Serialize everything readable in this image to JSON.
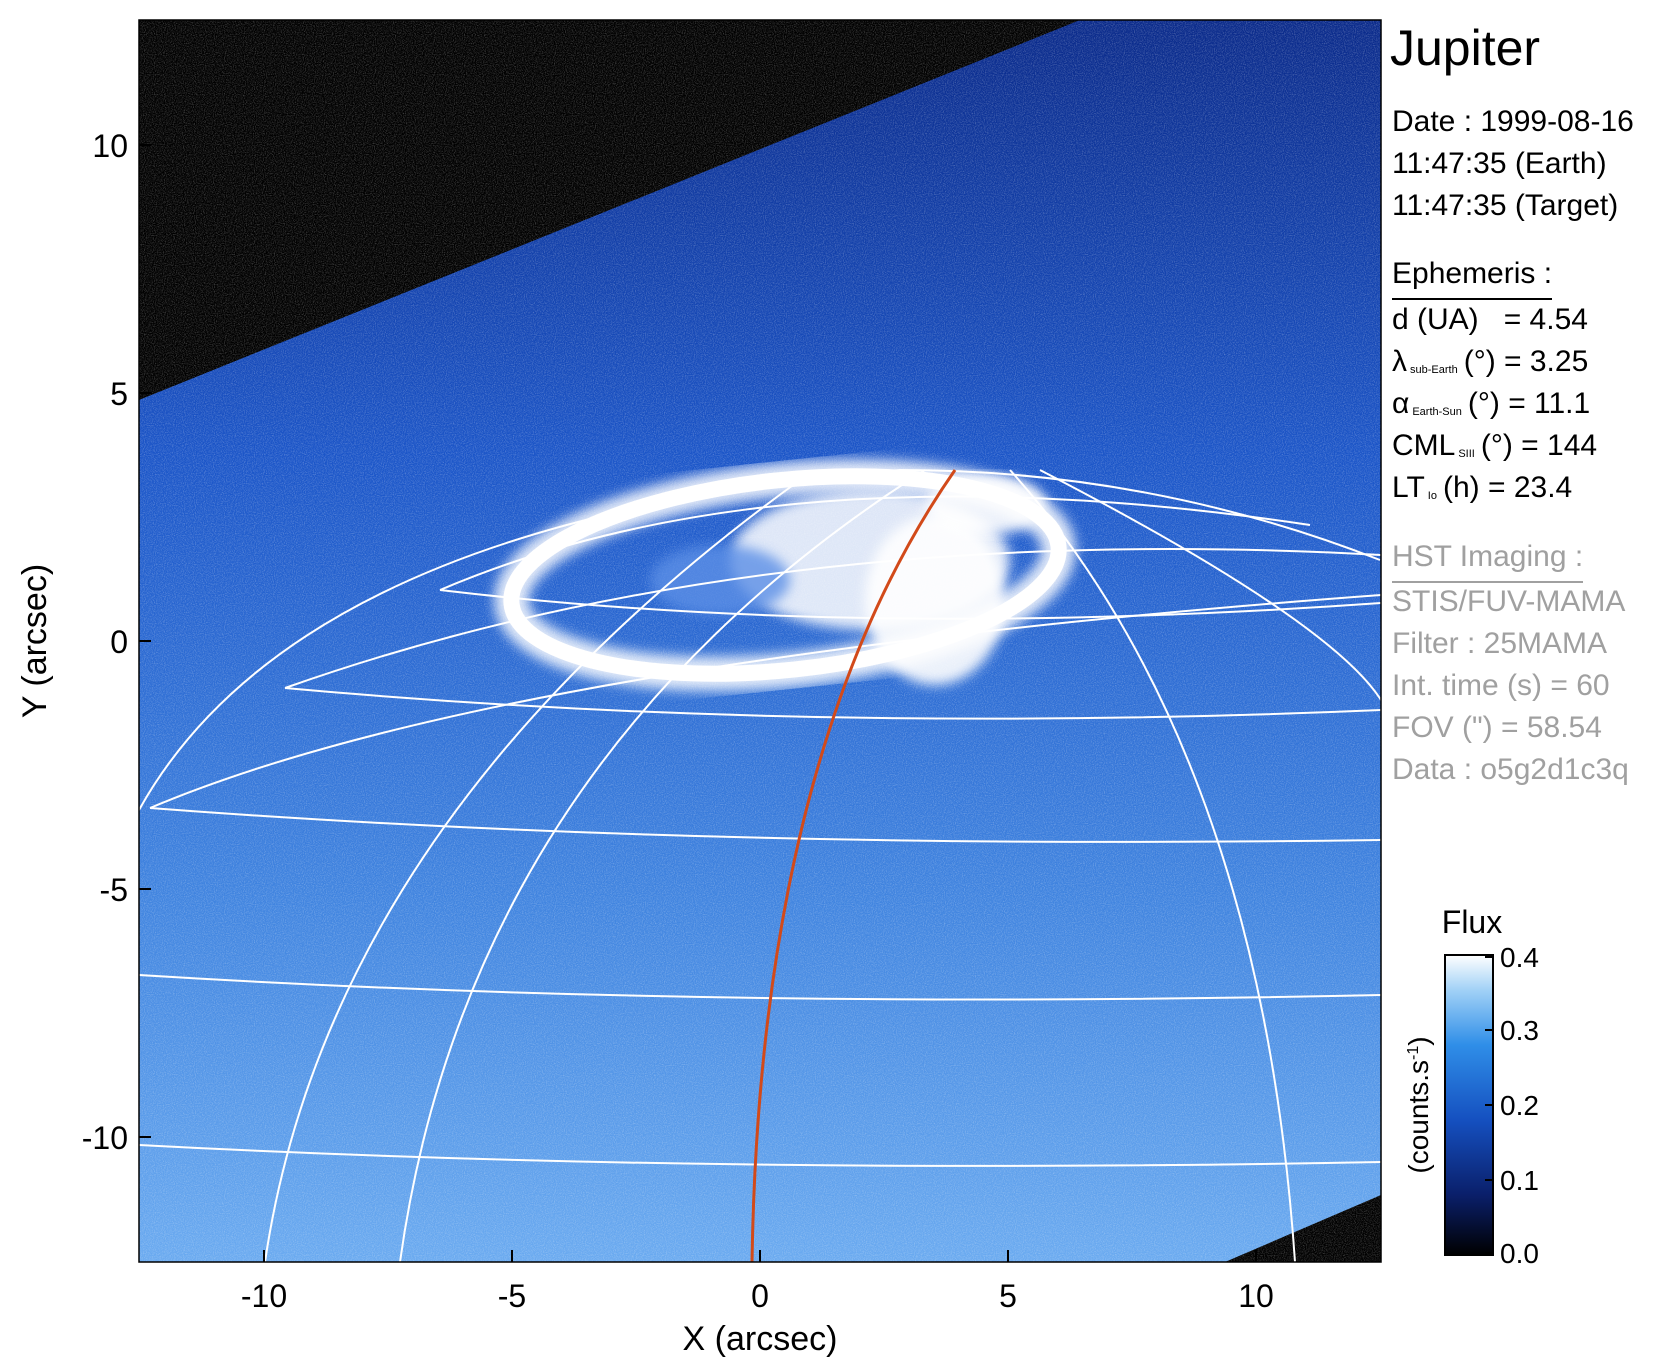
{
  "figure": {
    "target": "Jupiter",
    "xlabel": "X (arcsec)",
    "ylabel": "Y (arcsec)",
    "x_ticks": [
      "-10",
      "-5",
      "0",
      "5",
      "10"
    ],
    "y_ticks": [
      "10",
      "5",
      "0",
      "-5",
      "-10"
    ],
    "x_range": [
      -12.5,
      12.5
    ],
    "y_range": [
      -12.5,
      12.5
    ]
  },
  "observation": {
    "date_line": "Date : 1999-08-16",
    "time_earth": "11:47:35 (Earth)",
    "time_target": "11:47:35 (Target)"
  },
  "ephemeris": {
    "heading": "Ephemeris :",
    "d_label": "d (UA)",
    "d_value": "= 4.54",
    "lambda_symbol": "λ",
    "lambda_sub": "sub-Earth",
    "lambda_rest": "(°) = 3.25",
    "alpha_symbol": "α",
    "alpha_sub": "Earth-Sun",
    "alpha_rest": "(°) = 11.1",
    "cml_symbol": "CML",
    "cml_sub": "SIII",
    "cml_rest": "(°) = 144",
    "lt_symbol": "LT",
    "lt_sub": "Io",
    "lt_rest": "(h) = 23.4"
  },
  "imaging": {
    "heading": "HST Imaging :",
    "instrument": "STIS/FUV-MAMA",
    "filter": "Filter : 25MAMA",
    "int_time": "Int. time (s) = 60",
    "fov": "FOV (\") = 58.54",
    "data_id": "Data : o5g2d1c3q"
  },
  "colorbar": {
    "title": "Flux",
    "unit": "(counts.s",
    "unit_sup": "-1",
    "unit_close": ")",
    "ticks": [
      "0.4",
      "0.3",
      "0.2",
      "0.1",
      "0.0"
    ],
    "range": [
      0.0,
      0.4
    ]
  },
  "colors": {
    "background": "#000000",
    "disk_dark": "#0a2a8a",
    "disk_light": "#5aa0ee",
    "aurora": "#ffffff",
    "grid": "#ffffff",
    "io_footprint": "#d24a1a",
    "gray_text": "#a0a0a0"
  }
}
